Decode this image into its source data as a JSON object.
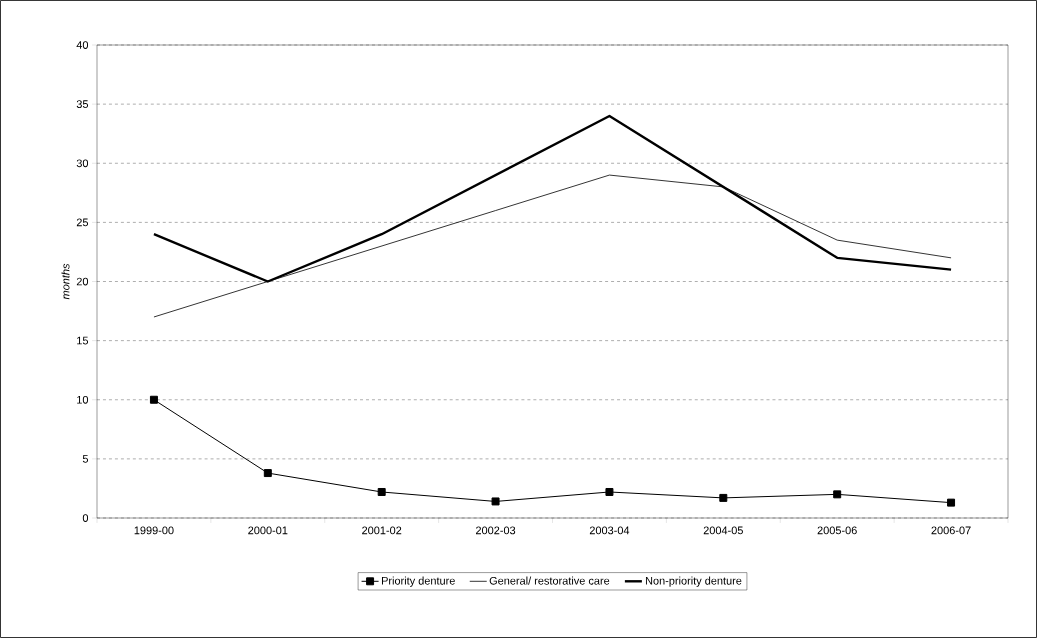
{
  "chart_data": {
    "type": "line",
    "ylabel": "months",
    "categories": [
      "1999-00",
      "2000-01",
      "2001-02",
      "2002-03",
      "2003-04",
      "2004-05",
      "2005-06",
      "2006-07"
    ],
    "series": [
      {
        "name": "Priority denture",
        "color": "#000000",
        "marker": "square",
        "values": [
          10,
          3.8,
          2.2,
          1.4,
          2.2,
          1.7,
          2.0,
          1.3
        ]
      },
      {
        "name": "General/ restorative care",
        "color": "#000000",
        "marker": "none",
        "values": [
          17,
          20,
          23,
          26,
          29,
          28,
          23.5,
          22
        ]
      },
      {
        "name": "Non-priority denture",
        "color": "#000000",
        "marker": "none",
        "values": [
          24,
          20,
          24,
          29,
          34,
          28,
          22,
          21
        ]
      }
    ],
    "ylim": [
      0,
      40
    ],
    "yticks": [
      0,
      5,
      10,
      15,
      20,
      25,
      30,
      35,
      40
    ],
    "grid": "y",
    "legend": "bottom",
    "line_style": "solid"
  }
}
